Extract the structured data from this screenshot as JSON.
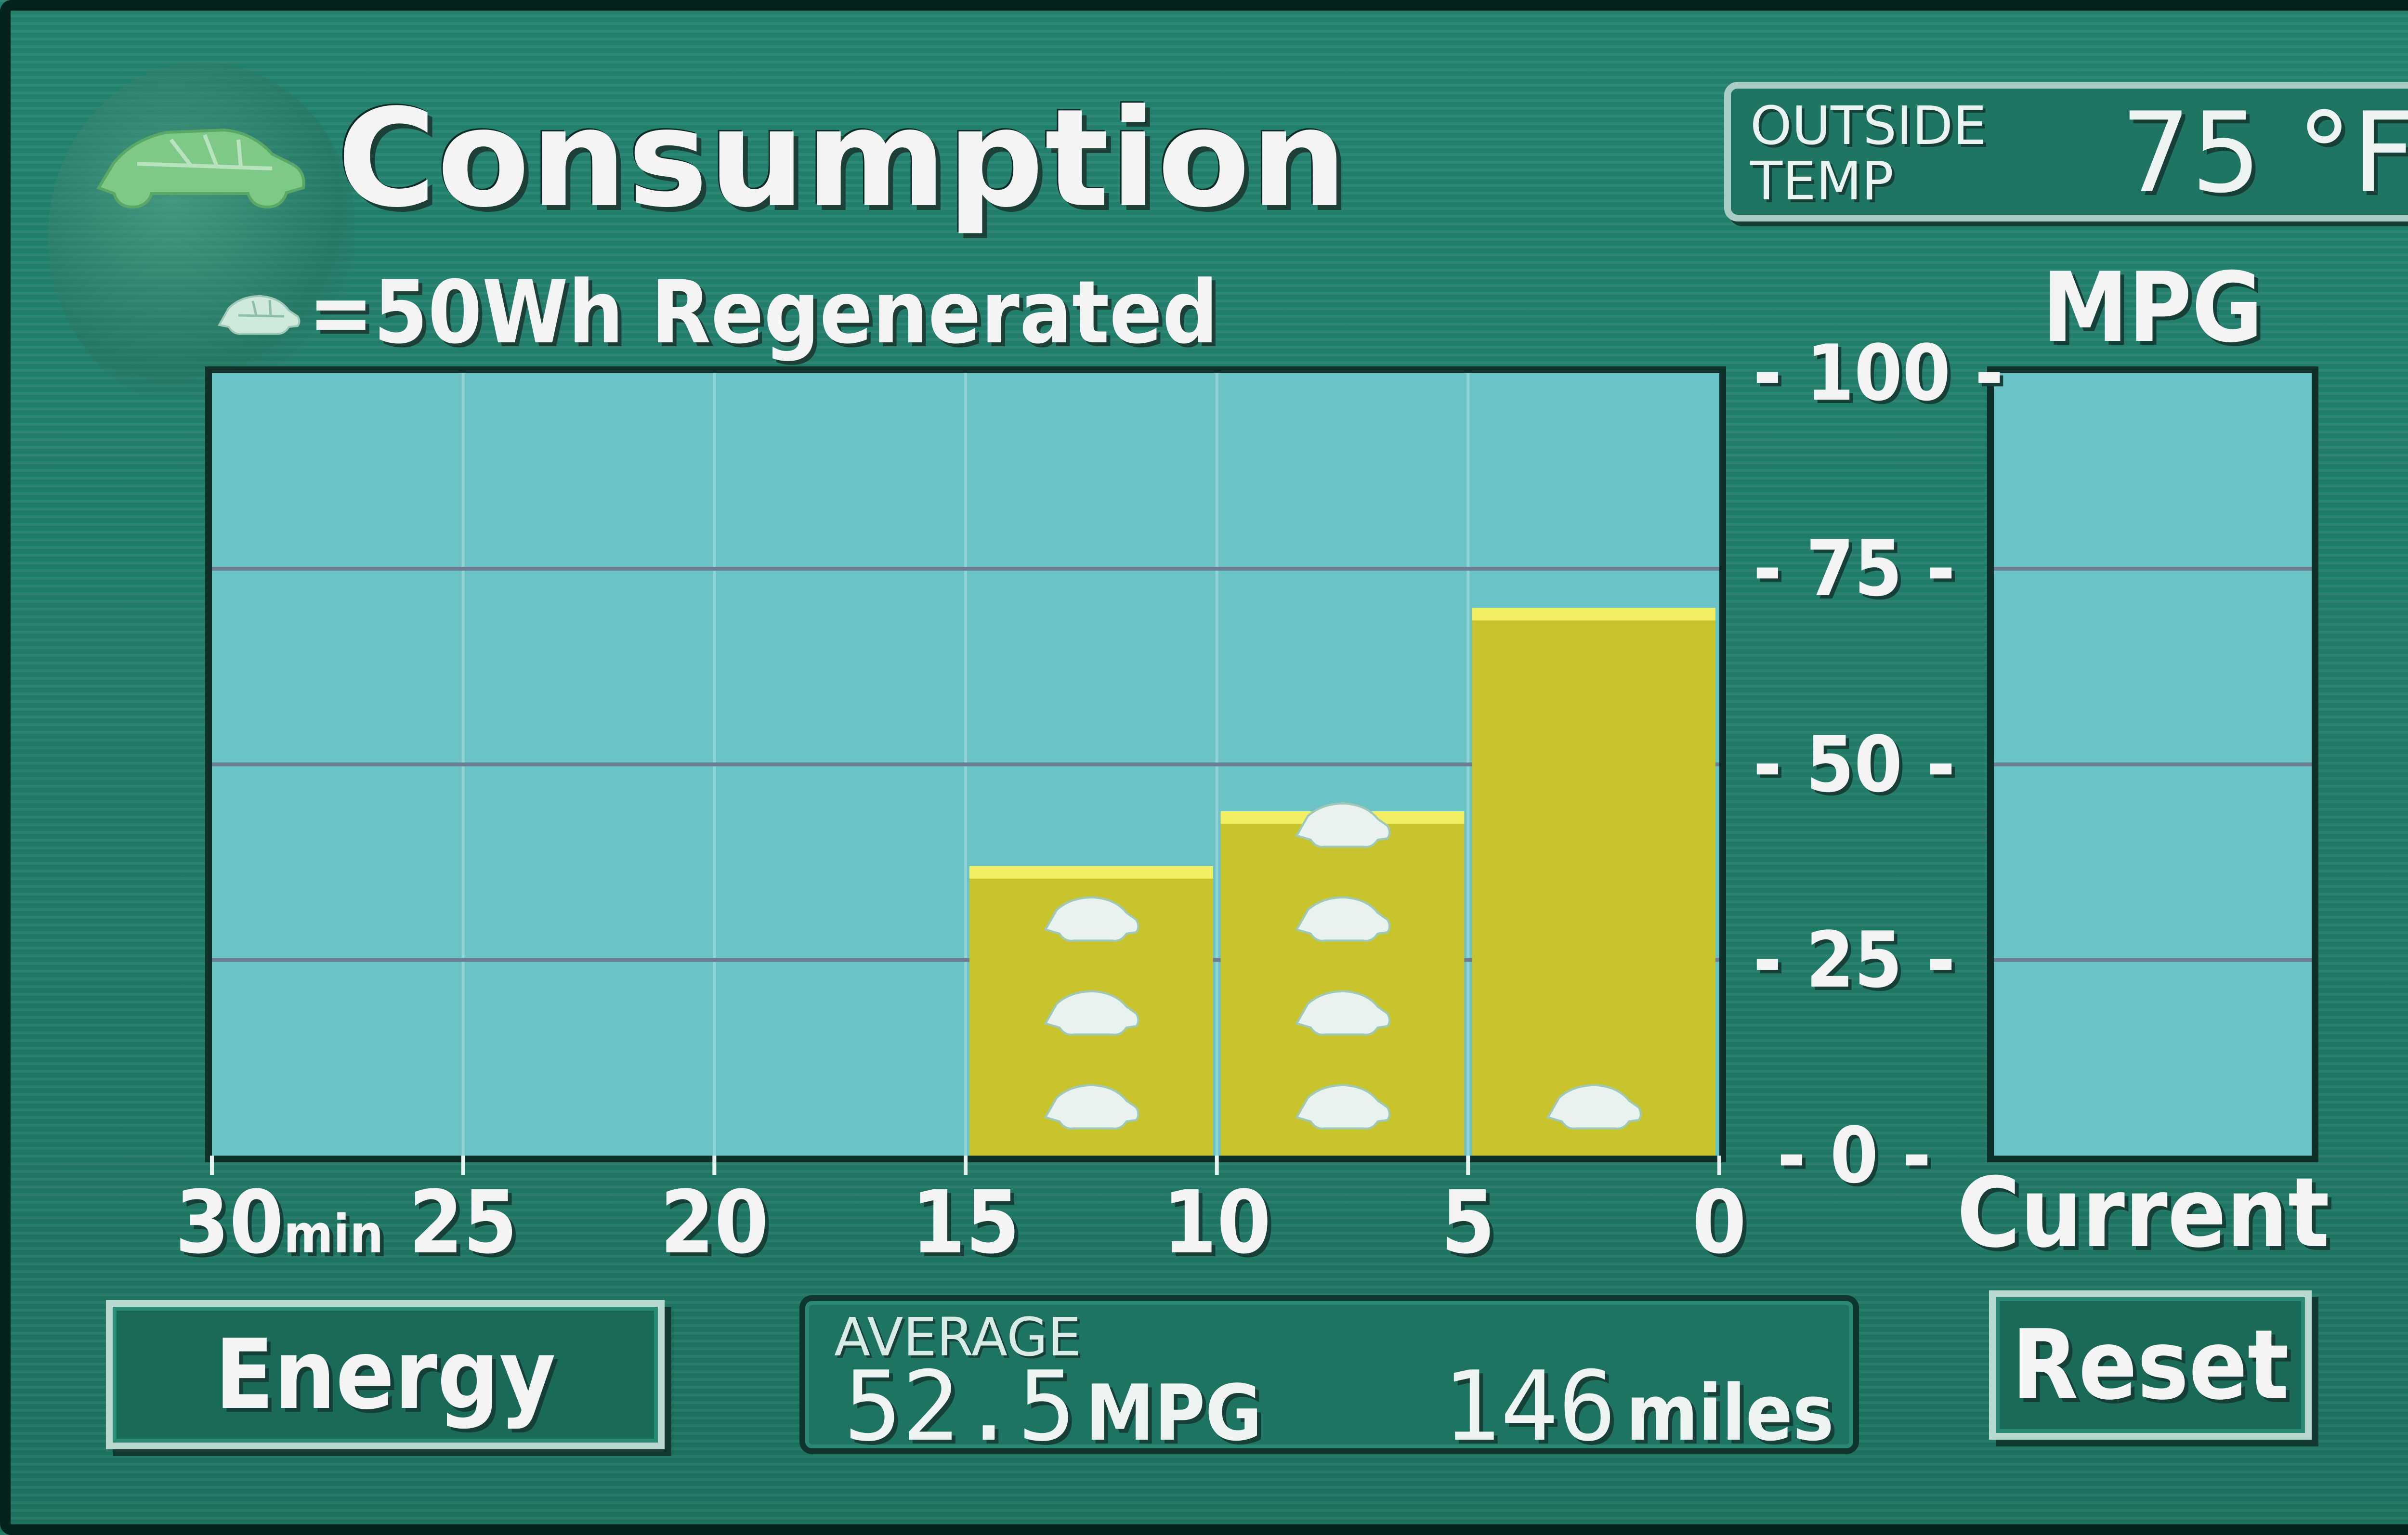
{
  "header": {
    "title": "Consumption",
    "legend_text": "=50Wh Regenerated",
    "icon": "leaf-car-icon"
  },
  "outside_temp": {
    "label": "OUTSIDE\nTEMP",
    "value": "75 °F"
  },
  "mpg_axis_label": "MPG",
  "current_label": "Current",
  "buttons": {
    "energy": "Energy",
    "reset": "Reset"
  },
  "average": {
    "label": "AVERAGE",
    "mpg_value": "52.5",
    "mpg_unit": "MPG",
    "miles_value": "146",
    "miles_unit": "miles"
  },
  "colors": {
    "plot_bg": "#6cc3c6",
    "bar_fill": "#c7c42c",
    "bar_top": "#f2ef63",
    "gridline": "#6d7e92",
    "icon": "#e8f2ee"
  },
  "chart_data": {
    "type": "bar",
    "ylabel": "MPG",
    "ylim": [
      0,
      100
    ],
    "yticks": [
      0,
      25,
      50,
      75,
      100
    ],
    "xticks": [
      "30",
      "25",
      "20",
      "15",
      "10",
      "5",
      "0"
    ],
    "xtick_unit": "min",
    "xlim": [
      30,
      0
    ],
    "bars": [
      {
        "from": 15,
        "to": 10,
        "mpg": 37,
        "regen_units": 3
      },
      {
        "from": 10,
        "to": 5,
        "mpg": 44,
        "regen_units": 4
      },
      {
        "from": 5,
        "to": 0,
        "mpg": 70,
        "regen_units": 1
      }
    ],
    "current_mpg": 0
  }
}
